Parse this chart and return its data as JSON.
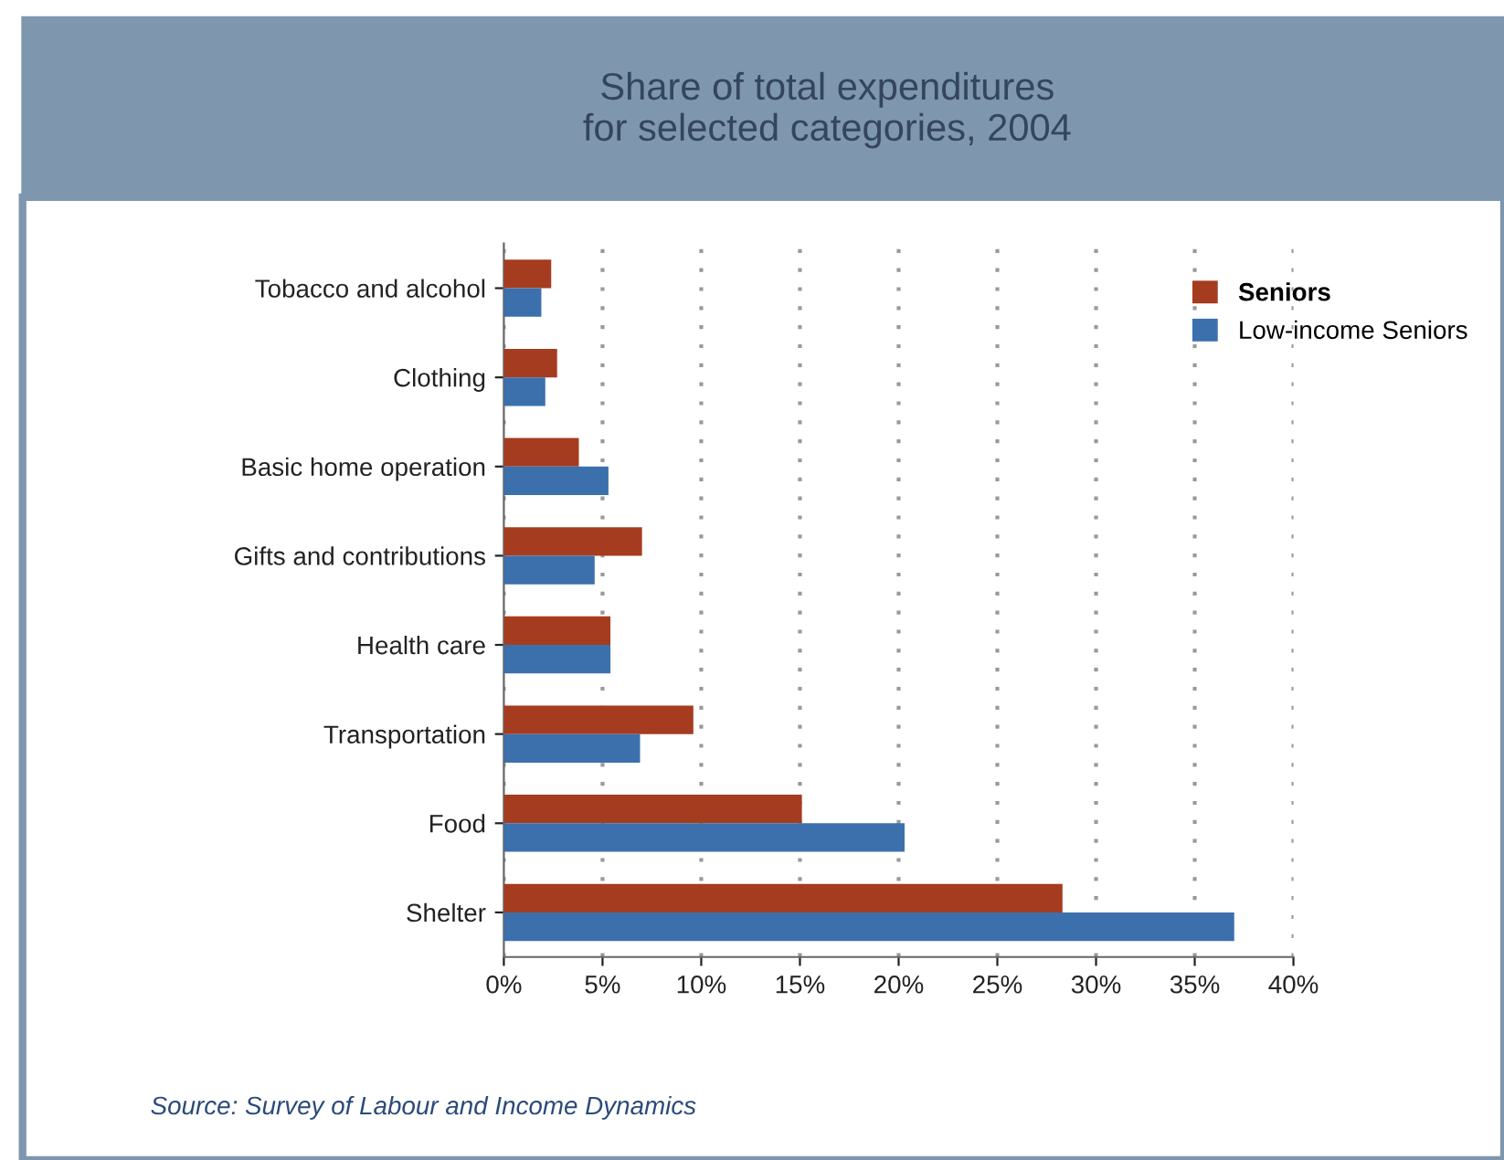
{
  "chart_data": {
    "type": "bar",
    "orientation": "horizontal",
    "title": "Share of total expenditures\nfor selected categories, 2004",
    "categories": [
      "Tobacco and alcohol",
      "Clothing",
      "Basic home operation",
      "Gifts and contributions",
      "Health care",
      "Transportation",
      "Food",
      "Shelter"
    ],
    "series": [
      {
        "name": "Seniors",
        "color": "#a63c1f",
        "values": [
          2.4,
          2.7,
          3.8,
          7.0,
          5.4,
          9.6,
          15.1,
          28.3
        ]
      },
      {
        "name": "Low-income Seniors",
        "color": "#3b70ad",
        "values": [
          1.9,
          2.1,
          5.3,
          4.6,
          5.4,
          6.9,
          20.3,
          37.0
        ]
      }
    ],
    "xlim": [
      0,
      40
    ],
    "xticks": [
      {
        "value": 0,
        "label": "0%"
      },
      {
        "value": 5,
        "label": "5%"
      },
      {
        "value": 10,
        "label": "10%"
      },
      {
        "value": 15,
        "label": "15%"
      },
      {
        "value": 20,
        "label": "20%"
      },
      {
        "value": 25,
        "label": "25%"
      },
      {
        "value": 30,
        "label": "30%"
      },
      {
        "value": 35,
        "label": "35%"
      },
      {
        "value": 40,
        "label": "40%"
      }
    ],
    "grid": "x",
    "legend": "top right",
    "annotations": [
      "Source: Survey of Labour and Income Dynamics"
    ]
  }
}
